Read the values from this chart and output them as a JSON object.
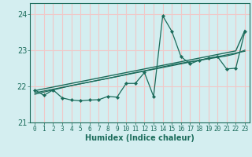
{
  "xlabel": "Humidex (Indice chaleur)",
  "bg_color": "#d4eef0",
  "grid_color": "#f0c8c8",
  "line_color": "#1a6b5a",
  "xlim": [
    -0.5,
    23.5
  ],
  "ylim": [
    21.0,
    24.3
  ],
  "yticks": [
    21,
    22,
    23,
    24
  ],
  "xticks": [
    0,
    1,
    2,
    3,
    4,
    5,
    6,
    7,
    8,
    9,
    10,
    11,
    12,
    13,
    14,
    15,
    16,
    17,
    18,
    19,
    20,
    21,
    22,
    23
  ],
  "x": [
    0,
    1,
    2,
    3,
    4,
    5,
    6,
    7,
    8,
    9,
    10,
    11,
    12,
    13,
    14,
    15,
    16,
    17,
    18,
    19,
    20,
    21,
    22,
    23
  ],
  "y_main": [
    21.9,
    21.75,
    21.9,
    21.68,
    21.62,
    21.6,
    21.62,
    21.63,
    21.72,
    21.7,
    22.08,
    22.08,
    22.38,
    21.72,
    23.95,
    23.52,
    22.82,
    22.62,
    22.72,
    22.78,
    22.82,
    22.48,
    22.5,
    23.52
  ],
  "y_trend1": [
    21.82,
    21.87,
    21.92,
    21.97,
    22.02,
    22.07,
    22.12,
    22.17,
    22.22,
    22.27,
    22.32,
    22.37,
    22.42,
    22.47,
    22.52,
    22.57,
    22.62,
    22.67,
    22.72,
    22.77,
    22.82,
    22.87,
    22.92,
    22.97
  ],
  "y_trend2": [
    21.78,
    21.84,
    21.9,
    21.96,
    22.02,
    22.07,
    22.12,
    22.17,
    22.22,
    22.27,
    22.33,
    22.38,
    22.43,
    22.48,
    22.54,
    22.59,
    22.64,
    22.68,
    22.72,
    22.76,
    22.8,
    22.84,
    22.9,
    23.0
  ],
  "y_trend3": [
    21.88,
    21.93,
    21.98,
    22.03,
    22.08,
    22.13,
    22.18,
    22.23,
    22.28,
    22.33,
    22.38,
    22.43,
    22.48,
    22.53,
    22.58,
    22.63,
    22.68,
    22.73,
    22.78,
    22.83,
    22.88,
    22.93,
    22.98,
    23.55
  ]
}
